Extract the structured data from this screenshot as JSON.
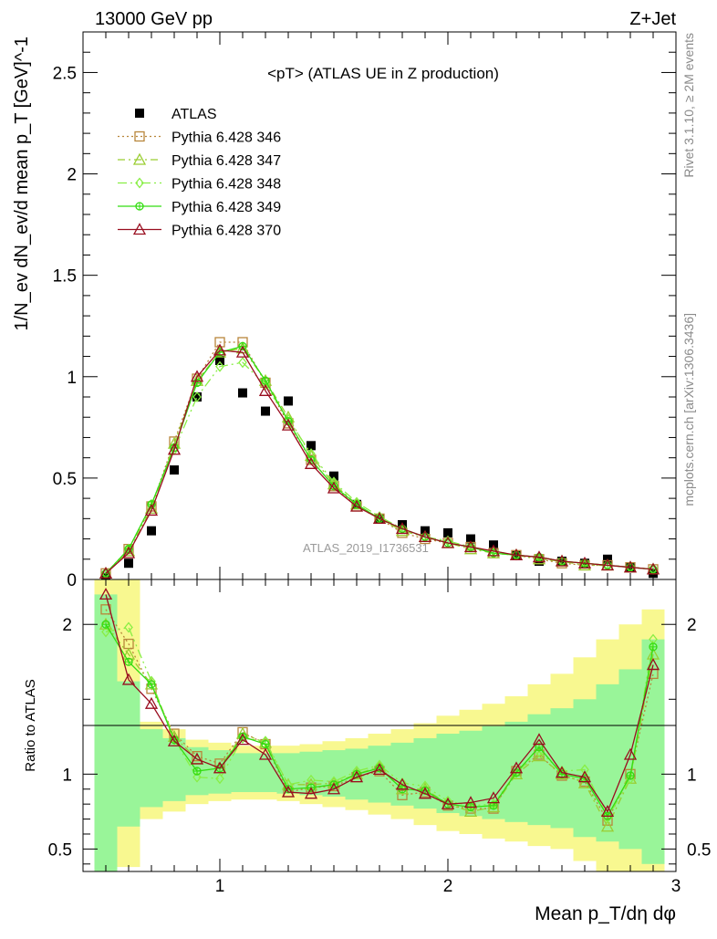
{
  "header": {
    "energy_label": "13000 GeV pp",
    "process_label": "Z+Jet"
  },
  "side_labels": {
    "rivet": "Rivet 3.1.10, ≥ 2M events",
    "mcplots": "mcplots.cern.ch [arXiv:1306.3436]"
  },
  "watermark": "ATLAS_2019_I1736531",
  "chart_data": [
    {
      "type": "scatter",
      "title": "<pT> (ATLAS UE in Z production)",
      "ylabel": "1/N_ev dN_ev/d mean p_T [GeV]^-1",
      "xlabel": "Mean p_T/dη dφ",
      "xlim": [
        0.4,
        3.0
      ],
      "ylim": [
        0,
        2.7
      ],
      "x_ticks": [
        "1",
        "2",
        "3"
      ],
      "y_ticks": [
        "0",
        "0.5",
        "1",
        "1.5",
        "2",
        "2.5"
      ],
      "legend_position": "top-left",
      "x": [
        0.5,
        0.6,
        0.7,
        0.8,
        0.9,
        1.0,
        1.1,
        1.2,
        1.3,
        1.4,
        1.5,
        1.6,
        1.7,
        1.8,
        1.9,
        2.0,
        2.1,
        2.2,
        2.3,
        2.4,
        2.5,
        2.6,
        2.7,
        2.8,
        2.9
      ],
      "series": [
        {
          "name": "ATLAS",
          "color": "#000000",
          "marker": "square-filled",
          "dash": "none",
          "values": [
            0.01,
            0.08,
            0.24,
            0.54,
            0.9,
            1.08,
            0.92,
            0.83,
            0.88,
            0.66,
            0.51,
            0.37,
            0.3,
            0.27,
            0.24,
            0.23,
            0.2,
            0.17,
            0.12,
            0.09,
            0.09,
            0.08,
            0.1,
            0.06,
            0.03
          ]
        },
        {
          "name": "Pythia 6.428 346",
          "color": "#b8863b",
          "marker": "square-open",
          "dash": "2,3",
          "values": [
            0.03,
            0.15,
            0.36,
            0.68,
            0.99,
            1.17,
            1.17,
            0.97,
            0.77,
            0.59,
            0.46,
            0.36,
            0.3,
            0.23,
            0.2,
            0.18,
            0.16,
            0.13,
            0.12,
            0.1,
            0.08,
            0.07,
            0.07,
            0.06,
            0.05
          ]
        },
        {
          "name": "Pythia 6.428 347",
          "color": "#9acd32",
          "marker": "triangle-open",
          "dash": "8,4,2,4",
          "values": [
            0.03,
            0.14,
            0.35,
            0.67,
            0.98,
            1.12,
            1.14,
            0.98,
            0.8,
            0.61,
            0.47,
            0.37,
            0.3,
            0.24,
            0.21,
            0.18,
            0.15,
            0.13,
            0.12,
            0.1,
            0.09,
            0.07,
            0.07,
            0.06,
            0.05
          ]
        },
        {
          "name": "Pythia 6.428 348",
          "color": "#88ee44",
          "marker": "diamond-open",
          "dash": "10,4,2,4,2,4",
          "values": [
            0.03,
            0.15,
            0.37,
            0.64,
            0.9,
            1.05,
            1.07,
            0.96,
            0.79,
            0.62,
            0.48,
            0.38,
            0.31,
            0.25,
            0.21,
            0.19,
            0.16,
            0.14,
            0.12,
            0.11,
            0.09,
            0.08,
            0.07,
            0.06,
            0.05
          ]
        },
        {
          "name": "Pythia 6.428 349",
          "color": "#33dd11",
          "marker": "circle-plus",
          "dash": "none",
          "values": [
            0.03,
            0.15,
            0.37,
            0.65,
            0.97,
            1.12,
            1.15,
            0.98,
            0.78,
            0.59,
            0.46,
            0.37,
            0.3,
            0.25,
            0.21,
            0.18,
            0.16,
            0.13,
            0.12,
            0.11,
            0.09,
            0.08,
            0.07,
            0.06,
            0.05
          ]
        },
        {
          "name": "Pythia 6.428 370",
          "color": "#990d1f",
          "marker": "triangle-open",
          "dash": "none",
          "values": [
            0.03,
            0.13,
            0.34,
            0.64,
            1.0,
            1.13,
            1.12,
            0.93,
            0.76,
            0.57,
            0.45,
            0.36,
            0.3,
            0.25,
            0.21,
            0.18,
            0.16,
            0.14,
            0.12,
            0.11,
            0.09,
            0.08,
            0.07,
            0.06,
            0.05
          ]
        }
      ]
    },
    {
      "type": "line",
      "ylabel": "Ratio to ATLAS",
      "xlabel": "Mean p_T/dη dφ",
      "xlim": [
        0.4,
        3.0
      ],
      "ylim": [
        0.35,
        2.3
      ],
      "x_ticks": [
        "1",
        "2",
        "3"
      ],
      "y_ticks": [
        "0.5",
        "1",
        "2"
      ],
      "bin_edges": [
        0.45,
        0.55,
        0.65,
        0.75,
        0.85,
        0.95,
        1.05,
        1.15,
        1.25,
        1.35,
        1.45,
        1.55,
        1.65,
        1.75,
        1.85,
        1.95,
        2.05,
        2.15,
        2.25,
        2.35,
        2.45,
        2.55,
        2.65,
        2.75,
        2.85,
        2.95
      ],
      "band_inner": {
        "color": "#99f599",
        "low": [
          0.3,
          0.65,
          0.78,
          0.82,
          0.86,
          0.87,
          0.88,
          0.88,
          0.87,
          0.86,
          0.85,
          0.83,
          0.81,
          0.79,
          0.77,
          0.74,
          0.72,
          0.7,
          0.68,
          0.66,
          0.64,
          0.58,
          0.55,
          0.5,
          0.4
        ],
        "high": [
          2.2,
          1.62,
          1.3,
          1.24,
          1.18,
          1.16,
          1.14,
          1.14,
          1.14,
          1.15,
          1.16,
          1.17,
          1.19,
          1.21,
          1.24,
          1.27,
          1.29,
          1.32,
          1.35,
          1.4,
          1.44,
          1.5,
          1.6,
          1.7,
          1.9
        ]
      },
      "band_outer": {
        "color": "#f8f890",
        "low": [
          0.35,
          0.38,
          0.7,
          0.75,
          0.8,
          0.82,
          0.83,
          0.83,
          0.82,
          0.8,
          0.78,
          0.76,
          0.73,
          0.7,
          0.66,
          0.62,
          0.6,
          0.57,
          0.55,
          0.52,
          0.5,
          0.42,
          0.35,
          0.32,
          0.3
        ],
        "high": [
          2.3,
          2.3,
          1.35,
          1.3,
          1.23,
          1.21,
          1.19,
          1.19,
          1.19,
          1.2,
          1.22,
          1.24,
          1.27,
          1.3,
          1.34,
          1.39,
          1.43,
          1.47,
          1.52,
          1.6,
          1.67,
          1.78,
          1.9,
          2.0,
          2.1
        ]
      },
      "x": [
        0.5,
        0.6,
        0.7,
        0.8,
        0.9,
        1.0,
        1.1,
        1.2,
        1.3,
        1.4,
        1.5,
        1.6,
        1.7,
        1.8,
        1.9,
        2.0,
        2.1,
        2.2,
        2.3,
        2.4,
        2.5,
        2.6,
        2.7,
        2.8,
        2.9
      ],
      "series": [
        {
          "name": "Pythia 6.428 346",
          "color": "#b8863b",
          "marker": "square-open",
          "dash": "2,3",
          "values": [
            2.1,
            1.87,
            1.57,
            1.27,
            1.12,
            1.07,
            1.28,
            1.2,
            0.88,
            0.91,
            0.92,
            0.98,
            1.02,
            0.86,
            0.88,
            0.79,
            0.77,
            0.77,
            1.02,
            1.13,
            0.99,
            0.95,
            0.69,
            1.0,
            1.67
          ]
        },
        {
          "name": "Pythia 6.428 347",
          "color": "#9acd32",
          "marker": "triangle-open",
          "dash": "8,4,2,4",
          "values": [
            2.0,
            1.8,
            1.6,
            1.25,
            1.1,
            1.04,
            1.27,
            1.21,
            0.93,
            0.93,
            0.94,
            1.0,
            1.05,
            0.9,
            0.9,
            0.8,
            0.75,
            0.78,
            1.0,
            1.12,
            1.0,
            0.94,
            0.65,
            0.97,
            1.8
          ]
        },
        {
          "name": "Pythia 6.428 348",
          "color": "#88ee44",
          "marker": "diamond-open",
          "dash": "10,4,2,4,2,4",
          "values": [
            1.95,
            1.98,
            1.62,
            1.23,
            0.98,
            0.97,
            1.24,
            1.22,
            0.93,
            0.96,
            0.95,
            1.02,
            1.06,
            0.94,
            0.92,
            0.82,
            0.79,
            0.8,
            1.01,
            1.15,
            1.02,
            1.03,
            0.71,
            0.97,
            1.9
          ]
        },
        {
          "name": "Pythia 6.428 349",
          "color": "#33dd11",
          "marker": "circle-plus",
          "dash": "none",
          "values": [
            2.0,
            1.75,
            1.6,
            1.23,
            1.02,
            1.04,
            1.25,
            1.2,
            0.9,
            0.91,
            0.93,
            1.0,
            1.04,
            0.9,
            0.89,
            0.8,
            0.78,
            0.79,
            1.01,
            1.18,
            1.0,
            0.97,
            0.72,
            0.99,
            1.85
          ]
        },
        {
          "name": "Pythia 6.428 370",
          "color": "#990d1f",
          "marker": "triangle-open",
          "dash": "none",
          "values": [
            2.2,
            1.63,
            1.47,
            1.22,
            1.1,
            1.04,
            1.23,
            1.13,
            0.88,
            0.87,
            0.9,
            0.98,
            1.03,
            0.93,
            0.87,
            0.8,
            0.81,
            0.84,
            1.04,
            1.23,
            1.01,
            0.98,
            0.75,
            1.13,
            1.73
          ]
        }
      ]
    }
  ]
}
